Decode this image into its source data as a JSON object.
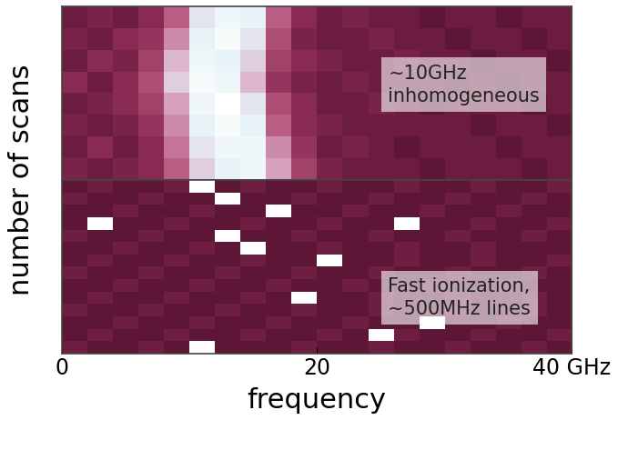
{
  "chart_data": [
    {
      "type": "heatmap",
      "ylabel": "number of scans",
      "annotation": "~10GHz\ninhomogeneous",
      "xlim": [
        0,
        40
      ],
      "tick_labels": false,
      "cells": [
        [
          0.2,
          0.25,
          0.2,
          0.3,
          0.5,
          0.8,
          0.9,
          0.85,
          0.5,
          0.3,
          0.2,
          0.25,
          0.2,
          0.2,
          0.15,
          0.2,
          0.2,
          0.15,
          0.2,
          0.2
        ],
        [
          0.25,
          0.2,
          0.3,
          0.35,
          0.6,
          0.85,
          0.95,
          0.8,
          0.45,
          0.25,
          0.2,
          0.2,
          0.25,
          0.2,
          0.2,
          0.15,
          0.2,
          0.2,
          0.15,
          0.2
        ],
        [
          0.2,
          0.3,
          0.25,
          0.4,
          0.7,
          0.9,
          0.85,
          0.75,
          0.4,
          0.3,
          0.25,
          0.2,
          0.2,
          0.25,
          0.2,
          0.2,
          0.15,
          0.2,
          0.2,
          0.15
        ],
        [
          0.3,
          0.2,
          0.3,
          0.45,
          0.75,
          0.95,
          0.9,
          0.7,
          0.35,
          0.25,
          0.2,
          0.25,
          0.2,
          0.2,
          0.2,
          0.15,
          0.2,
          0.15,
          0.2,
          0.2
        ],
        [
          0.2,
          0.25,
          0.3,
          0.4,
          0.65,
          0.9,
          1.0,
          0.8,
          0.45,
          0.3,
          0.2,
          0.2,
          0.25,
          0.2,
          0.15,
          0.2,
          0.2,
          0.2,
          0.15,
          0.2
        ],
        [
          0.25,
          0.2,
          0.25,
          0.35,
          0.6,
          0.85,
          0.95,
          0.85,
          0.5,
          0.3,
          0.25,
          0.2,
          0.2,
          0.2,
          0.2,
          0.2,
          0.15,
          0.2,
          0.2,
          0.15
        ],
        [
          0.2,
          0.3,
          0.2,
          0.3,
          0.55,
          0.8,
          0.9,
          0.9,
          0.6,
          0.35,
          0.2,
          0.25,
          0.2,
          0.15,
          0.2,
          0.2,
          0.2,
          0.15,
          0.2,
          0.2
        ],
        [
          0.25,
          0.2,
          0.25,
          0.3,
          0.5,
          0.75,
          0.85,
          0.9,
          0.65,
          0.4,
          0.25,
          0.2,
          0.2,
          0.2,
          0.15,
          0.2,
          0.2,
          0.2,
          0.15,
          0.2
        ]
      ]
    },
    {
      "type": "heatmap",
      "xlabel": "frequency",
      "annotation": "Fast ionization,\n~500MHz lines",
      "xlim": [
        0,
        40
      ],
      "xticks": [
        0,
        20,
        {
          "value": 40,
          "label": "40 GHz"
        }
      ],
      "cells": [
        [
          0.3,
          0.35,
          0.3,
          0.3,
          0.35,
          1.0,
          0.3,
          0.35,
          0.3,
          0.3,
          0.35,
          0.3,
          0.3,
          0.35,
          0.3,
          0.3,
          0.35,
          0.3,
          0.3,
          0.35
        ],
        [
          0.35,
          0.3,
          0.3,
          0.35,
          0.3,
          0.3,
          1.0,
          0.3,
          0.3,
          0.35,
          0.3,
          0.3,
          0.35,
          0.3,
          0.3,
          0.35,
          0.3,
          0.3,
          0.35,
          0.3
        ],
        [
          0.3,
          0.3,
          0.35,
          0.3,
          0.3,
          0.35,
          0.3,
          0.3,
          1.0,
          0.3,
          0.3,
          0.35,
          0.3,
          0.3,
          0.35,
          0.3,
          0.3,
          0.35,
          0.3,
          0.3
        ],
        [
          0.3,
          1.0,
          0.3,
          0.3,
          0.35,
          0.3,
          0.3,
          0.35,
          0.3,
          0.3,
          0.35,
          0.3,
          0.3,
          1.0,
          0.3,
          0.3,
          0.35,
          0.3,
          0.3,
          0.35
        ],
        [
          0.35,
          0.3,
          0.3,
          0.35,
          0.3,
          0.3,
          1.0,
          0.3,
          0.3,
          0.35,
          0.3,
          0.3,
          0.35,
          0.3,
          0.3,
          0.35,
          0.3,
          0.3,
          0.35,
          0.3
        ],
        [
          0.3,
          0.3,
          0.35,
          0.3,
          0.3,
          0.35,
          0.3,
          1.0,
          0.3,
          0.3,
          0.35,
          0.3,
          0.3,
          0.35,
          0.3,
          0.3,
          0.35,
          0.3,
          0.3,
          0.3
        ],
        [
          0.3,
          0.35,
          0.3,
          0.3,
          0.35,
          0.3,
          0.3,
          0.35,
          0.3,
          0.3,
          1.0,
          0.3,
          0.3,
          0.35,
          0.3,
          0.3,
          0.35,
          0.3,
          0.3,
          0.35
        ],
        [
          0.35,
          0.3,
          0.3,
          0.35,
          0.3,
          0.3,
          0.35,
          0.3,
          0.3,
          0.35,
          0.3,
          0.3,
          0.35,
          0.3,
          0.3,
          0.35,
          0.3,
          0.3,
          0.35,
          0.3
        ],
        [
          0.3,
          0.3,
          0.35,
          0.3,
          0.3,
          0.35,
          0.3,
          0.3,
          0.35,
          0.3,
          0.3,
          0.35,
          0.3,
          0.3,
          0.35,
          0.3,
          0.3,
          0.35,
          0.3,
          0.3
        ],
        [
          0.3,
          0.35,
          0.3,
          0.3,
          0.35,
          0.3,
          0.3,
          0.35,
          0.3,
          1.0,
          0.3,
          0.3,
          0.35,
          0.3,
          0.3,
          0.35,
          0.3,
          0.3,
          0.35,
          0.3
        ],
        [
          0.35,
          0.3,
          0.3,
          0.35,
          0.3,
          0.3,
          0.35,
          0.3,
          0.3,
          0.35,
          0.3,
          0.3,
          0.35,
          0.3,
          0.3,
          0.35,
          0.3,
          0.3,
          0.35,
          0.3
        ],
        [
          0.3,
          0.3,
          0.35,
          0.3,
          0.3,
          0.35,
          0.3,
          0.3,
          0.35,
          0.3,
          0.3,
          0.35,
          0.3,
          0.3,
          1.0,
          0.3,
          0.3,
          0.35,
          0.3,
          0.3
        ],
        [
          0.3,
          0.35,
          0.3,
          0.3,
          0.35,
          0.3,
          0.3,
          0.35,
          0.3,
          0.3,
          0.35,
          0.3,
          1.0,
          0.35,
          0.3,
          0.3,
          0.35,
          0.3,
          0.3,
          0.35
        ],
        [
          0.35,
          0.3,
          0.3,
          0.35,
          0.3,
          1.0,
          0.3,
          0.3,
          0.3,
          0.35,
          0.3,
          0.3,
          0.35,
          0.3,
          0.3,
          0.35,
          0.3,
          0.3,
          0.35,
          0.3
        ]
      ]
    }
  ]
}
